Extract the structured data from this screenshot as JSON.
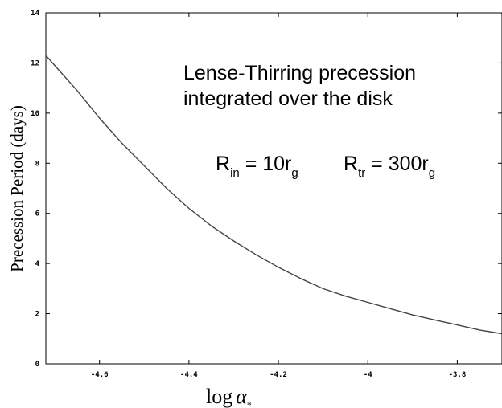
{
  "chart_data": {
    "type": "line",
    "title": "",
    "xlabel": "log",
    "xlabel_symbol": "α",
    "xlabel_subscript": "*",
    "ylabel": "Precession Period (days)",
    "xlim": [
      -4.72,
      -3.7
    ],
    "ylim": [
      0,
      14
    ],
    "xticks": [
      -4.6,
      -4.4,
      -4.2,
      -4,
      -3.8
    ],
    "xtick_labels": [
      "-4.6",
      "-4.4",
      "-4.2",
      "-4",
      "-3.8"
    ],
    "yticks": [
      0,
      2,
      4,
      6,
      8,
      10,
      12,
      14
    ],
    "ytick_labels": [
      "0",
      "2",
      "4",
      "6",
      "8",
      "10",
      "12",
      "14"
    ],
    "grid": false,
    "series": [
      {
        "x": [
          -4.72,
          -4.65,
          -4.6,
          -4.55,
          -4.5,
          -4.45,
          -4.4,
          -4.35,
          -4.3,
          -4.25,
          -4.2,
          -4.15,
          -4.1,
          -4.05,
          -4.0,
          -3.95,
          -3.9,
          -3.85,
          -3.8,
          -3.75,
          -3.7
        ],
        "values": [
          12.3,
          10.9,
          9.8,
          8.8,
          7.9,
          7.0,
          6.2,
          5.5,
          4.9,
          4.35,
          3.85,
          3.4,
          3.0,
          2.7,
          2.45,
          2.2,
          1.95,
          1.75,
          1.55,
          1.35,
          1.2
        ]
      }
    ],
    "annotations": {
      "line1": "Lense-Thirring precession",
      "line2": "integrated over the disk",
      "rin_main": "R",
      "rin_sub": "in",
      "rin_eq": " = 10r",
      "rin_sub2": "g",
      "rtr_main": "R",
      "rtr_sub": "tr",
      "rtr_eq": " = 300r",
      "rtr_sub2": "g"
    }
  }
}
